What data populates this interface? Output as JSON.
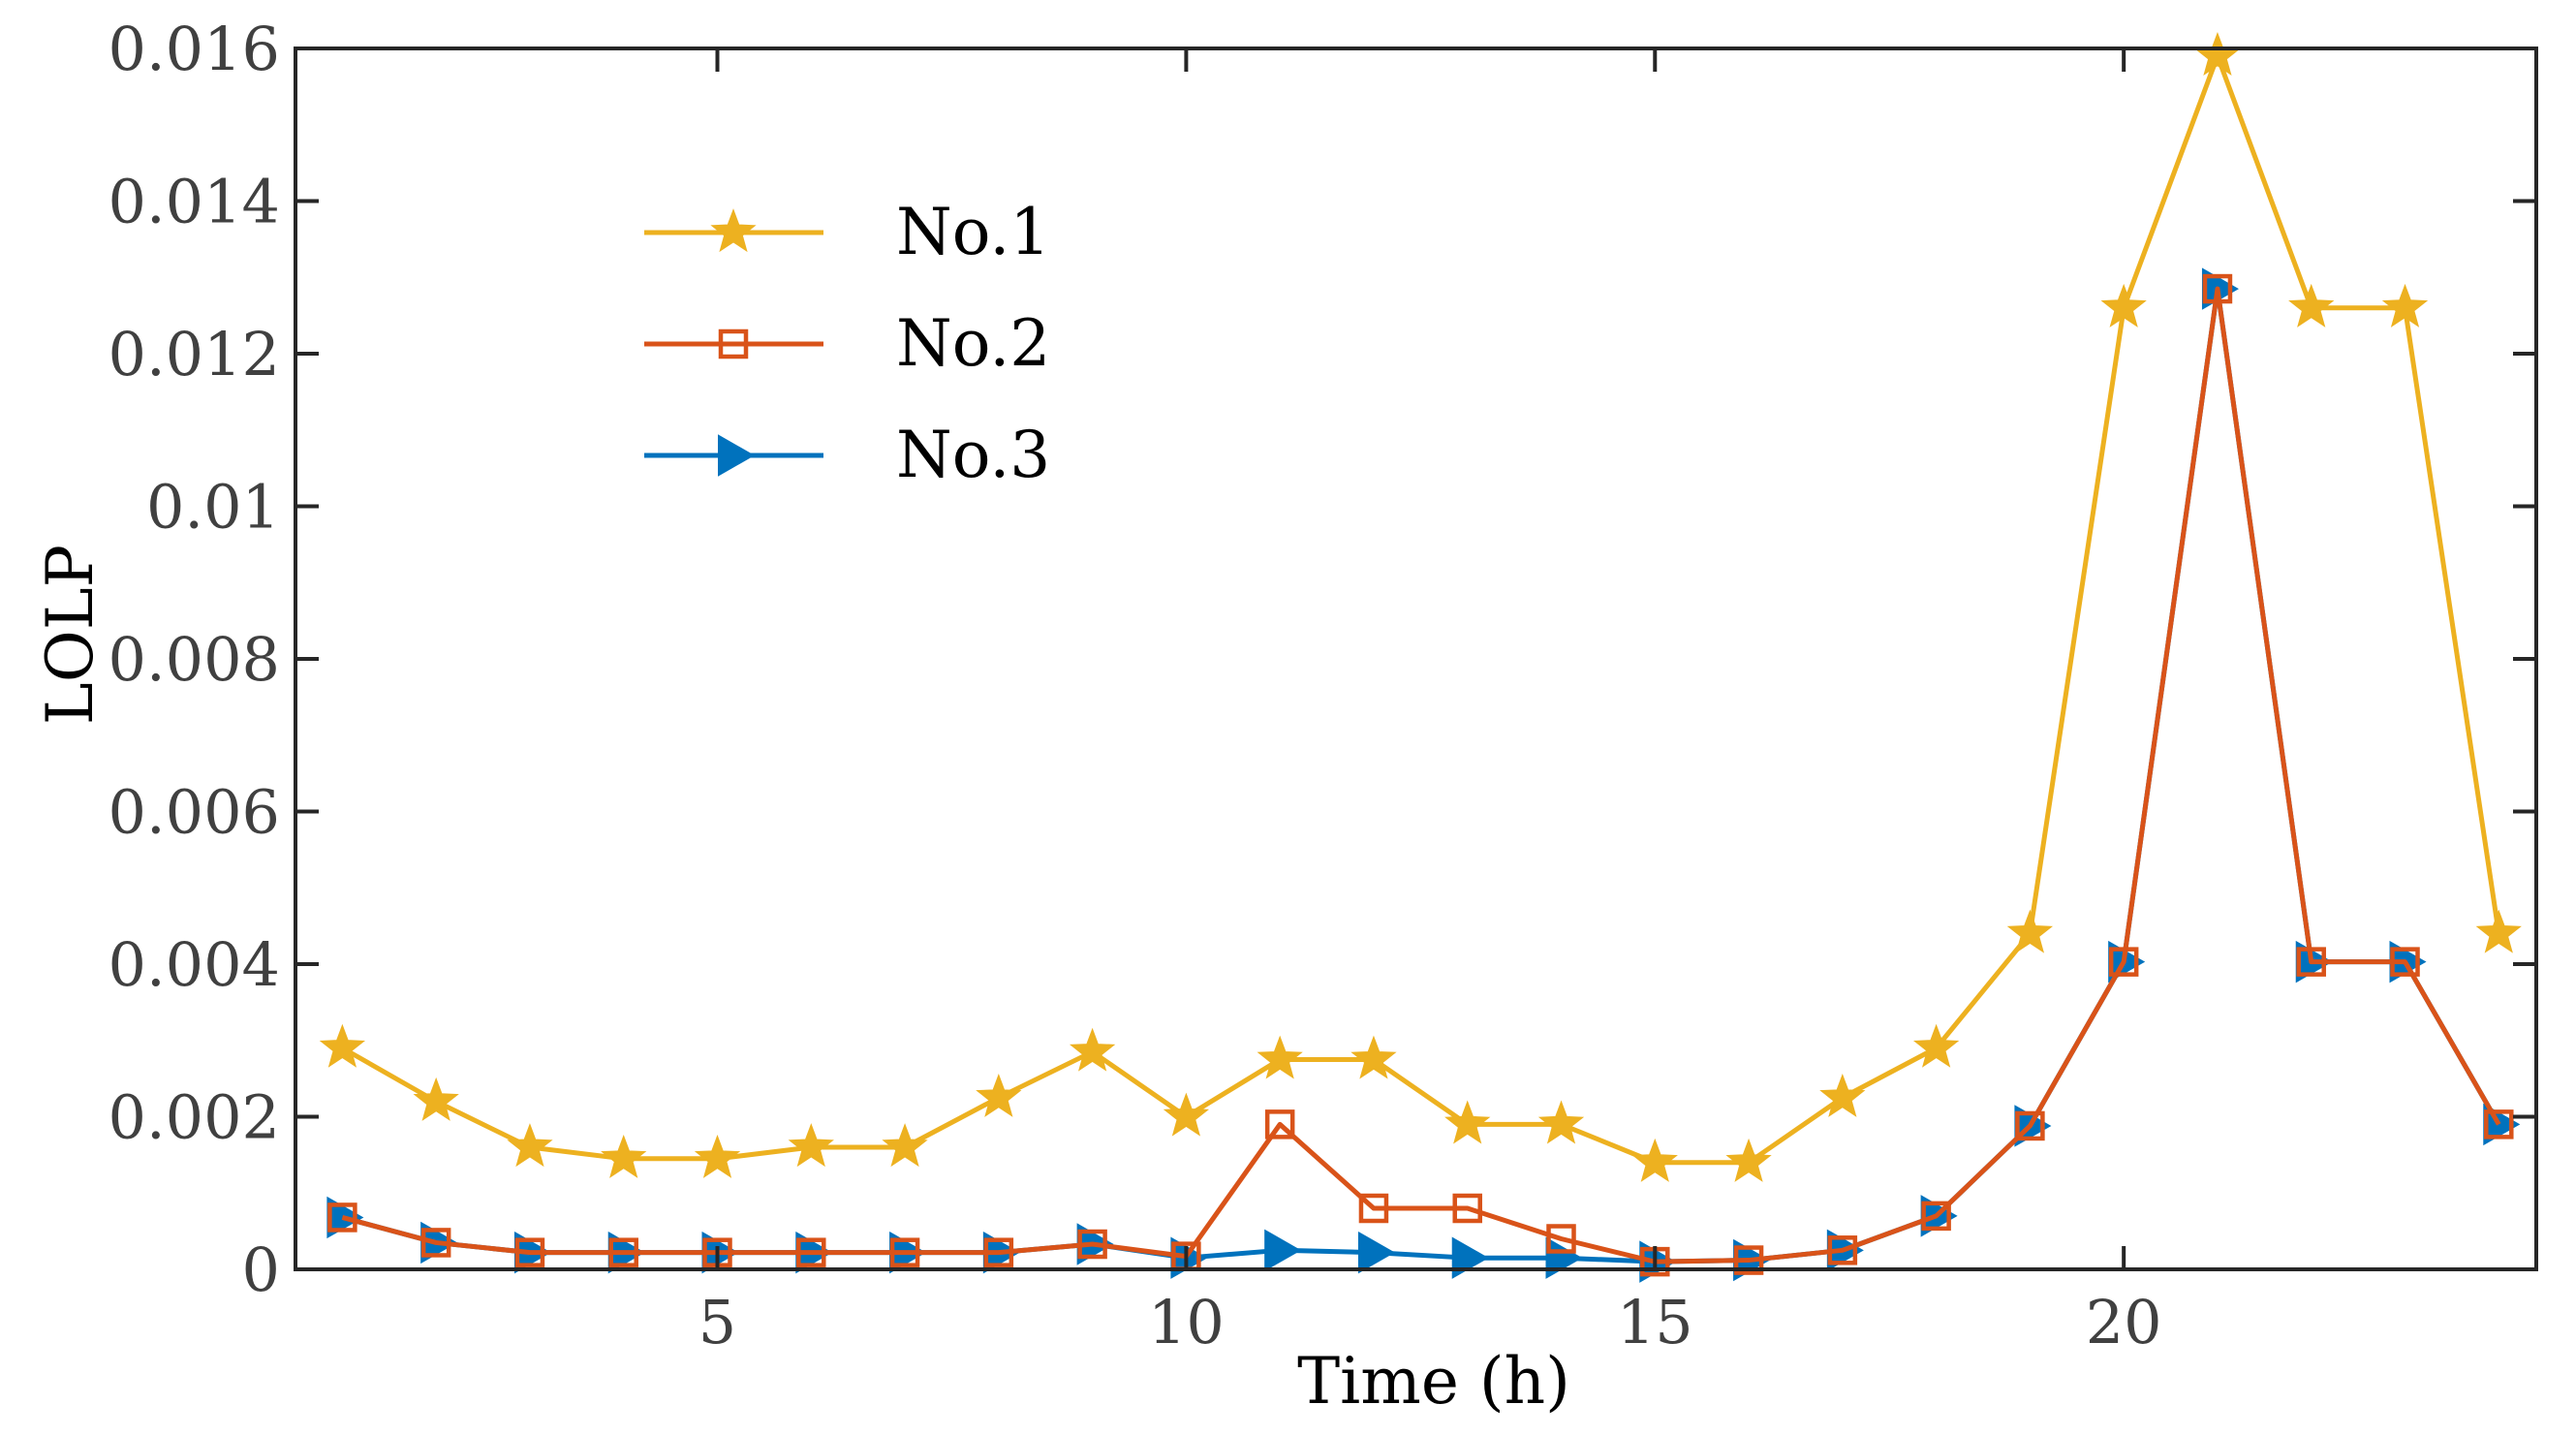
{
  "chart_data": {
    "type": "line",
    "title": "",
    "xlabel": "Time (h)",
    "ylabel": "LOLP",
    "xlim": [
      0.5,
      24.4
    ],
    "ylim": [
      0,
      0.016
    ],
    "x": [
      1,
      2,
      3,
      4,
      5,
      6,
      7,
      8,
      9,
      10,
      11,
      12,
      13,
      14,
      15,
      16,
      17,
      18,
      19,
      20,
      21,
      22,
      23,
      24
    ],
    "xticks": [
      5,
      10,
      15,
      20
    ],
    "xtick_labels": [
      "5",
      "10",
      "15",
      "20"
    ],
    "yticks": [
      0,
      0.002,
      0.004,
      0.006,
      0.008,
      0.01,
      0.012,
      0.014,
      0.016
    ],
    "ytick_labels": [
      "0",
      "0.002",
      "0.004",
      "0.006",
      "0.008",
      "0.01",
      "0.012",
      "0.014",
      "0.016"
    ],
    "grid": false,
    "legend_position": "top-left",
    "series": [
      {
        "name": "No.1",
        "color": "#EDB120",
        "marker": "star",
        "values": [
          0.0029,
          0.0022,
          0.0016,
          0.00145,
          0.00145,
          0.0016,
          0.0016,
          0.00225,
          0.00285,
          0.002,
          0.00275,
          0.00275,
          0.0019,
          0.0019,
          0.0014,
          0.0014,
          0.00225,
          0.0029,
          0.0044,
          0.0126,
          0.0159,
          0.0126,
          0.0126,
          0.0044
        ]
      },
      {
        "name": "No.2",
        "color": "#D95319",
        "marker": "square",
        "values": [
          0.00068,
          0.00035,
          0.00022,
          0.00022,
          0.00022,
          0.00022,
          0.00022,
          0.00022,
          0.00033,
          0.00017,
          0.0019,
          0.0008,
          0.0008,
          0.0004,
          0.0001,
          0.00012,
          0.00025,
          0.0007,
          0.00188,
          0.00403,
          0.01285,
          0.00403,
          0.00403,
          0.0019
        ]
      },
      {
        "name": "No.3",
        "color": "#0072BD",
        "marker": "triangle-right",
        "values": [
          0.00068,
          0.00035,
          0.00022,
          0.00022,
          0.00022,
          0.00022,
          0.00022,
          0.00022,
          0.00033,
          0.00015,
          0.00025,
          0.00022,
          0.00015,
          0.00015,
          0.0001,
          0.00012,
          0.00025,
          0.0007,
          0.00188,
          0.00403,
          0.01285,
          0.00403,
          0.00403,
          0.0019
        ]
      }
    ]
  }
}
